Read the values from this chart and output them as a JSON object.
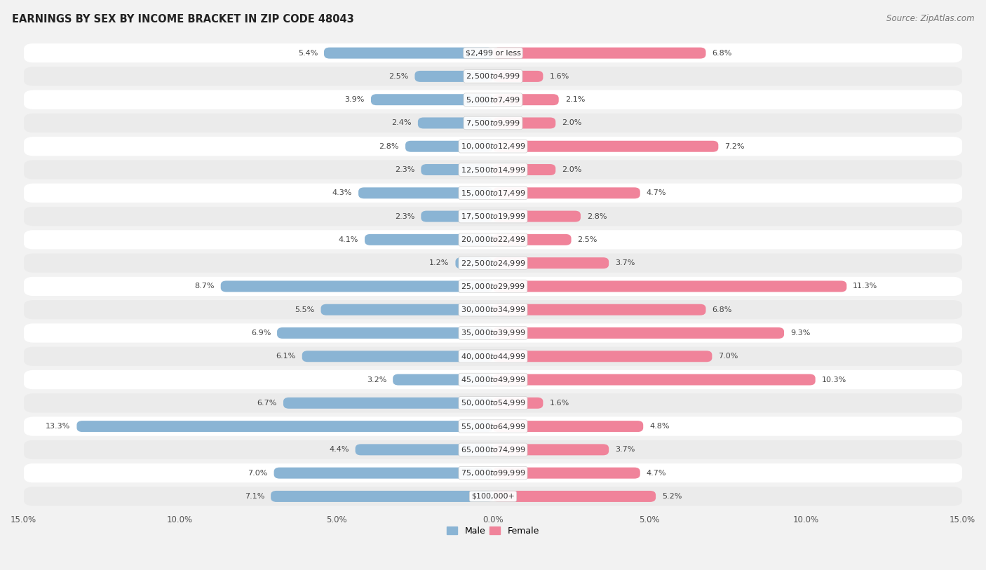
{
  "title": "EARNINGS BY SEX BY INCOME BRACKET IN ZIP CODE 48043",
  "source": "Source: ZipAtlas.com",
  "categories": [
    "$2,499 or less",
    "$2,500 to $4,999",
    "$5,000 to $7,499",
    "$7,500 to $9,999",
    "$10,000 to $12,499",
    "$12,500 to $14,999",
    "$15,000 to $17,499",
    "$17,500 to $19,999",
    "$20,000 to $22,499",
    "$22,500 to $24,999",
    "$25,000 to $29,999",
    "$30,000 to $34,999",
    "$35,000 to $39,999",
    "$40,000 to $44,999",
    "$45,000 to $49,999",
    "$50,000 to $54,999",
    "$55,000 to $64,999",
    "$65,000 to $74,999",
    "$75,000 to $99,999",
    "$100,000+"
  ],
  "male_values": [
    5.4,
    2.5,
    3.9,
    2.4,
    2.8,
    2.3,
    4.3,
    2.3,
    4.1,
    1.2,
    8.7,
    5.5,
    6.9,
    6.1,
    3.2,
    6.7,
    13.3,
    4.4,
    7.0,
    7.1
  ],
  "female_values": [
    6.8,
    1.6,
    2.1,
    2.0,
    7.2,
    2.0,
    4.7,
    2.8,
    2.5,
    3.7,
    11.3,
    6.8,
    9.3,
    7.0,
    10.3,
    1.6,
    4.8,
    3.7,
    4.7,
    5.2
  ],
  "male_color": "#8ab4d4",
  "female_color": "#f0839a",
  "male_label": "Male",
  "female_label": "Female",
  "xlim": 15.0,
  "bg_odd": "#f2f2f2",
  "bg_even": "#e8e8e8",
  "title_fontsize": 10.5,
  "source_fontsize": 8.5,
  "value_fontsize": 8.0,
  "category_fontsize": 8.0,
  "legend_fontsize": 9,
  "tick_fontsize": 8.5
}
